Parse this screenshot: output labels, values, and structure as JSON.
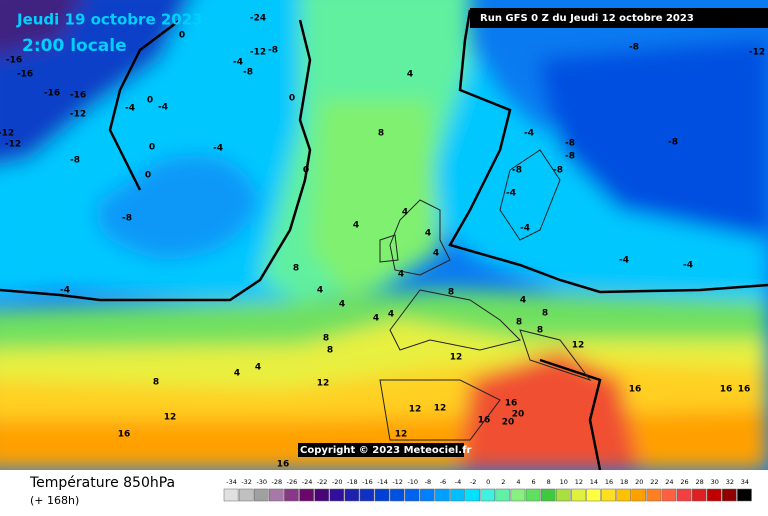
{
  "header": {
    "date": "Jeudi 19 octobre 2023",
    "time": "2:00 locale",
    "run": "Run GFS 0 Z du Jeudi 12 octobre 2023"
  },
  "map": {
    "copyright": "Copyright © 2023 Meteociel.fr",
    "labels": [
      "-24",
      "0",
      "-16",
      "-16",
      "-16",
      "-16",
      "-12",
      "-12",
      "-12",
      "-8",
      "-8",
      "-4",
      "-4",
      "0",
      "-4",
      "0",
      "0",
      "-4",
      "0",
      "-4",
      "-8",
      "-12",
      "-8",
      "0",
      "4",
      "8",
      "4",
      "4",
      "4",
      "4",
      "4",
      "8",
      "4",
      "4",
      "4",
      "4",
      "8",
      "8",
      "8",
      "4",
      "4",
      "8",
      "12",
      "16",
      "12",
      "12",
      "12",
      "12",
      "16",
      "16",
      "20",
      "20",
      "12",
      "16",
      "16",
      "16",
      "16",
      "12",
      "8",
      "8",
      "8",
      "-4",
      "-8",
      "-8",
      "-8",
      "-8",
      "-8",
      "-12",
      "-8",
      "-4",
      "-4",
      "-4",
      "-4",
      "4"
    ]
  },
  "footer": {
    "title": "Température 850hPa",
    "subtitle": "(+ 168h)"
  },
  "legend": {
    "values": [
      -34,
      -32,
      -30,
      -28,
      -26,
      -24,
      -22,
      -20,
      -18,
      -16,
      -14,
      -12,
      -10,
      -8,
      -6,
      -4,
      -2,
      0,
      2,
      4,
      6,
      8,
      10,
      12,
      14,
      16,
      18,
      20,
      22,
      24,
      26,
      28,
      30,
      32,
      34
    ],
    "colors": [
      "#e0e0e0",
      "#c0c0c0",
      "#a0a0a0",
      "#a878a8",
      "#883888",
      "#680868",
      "#480478",
      "#30109a",
      "#2020b0",
      "#1030c4",
      "#0040d4",
      "#0050e4",
      "#0062f0",
      "#0080ff",
      "#00a0ff",
      "#00c0ff",
      "#00e0ff",
      "#40f0e0",
      "#60f0a8",
      "#88f080",
      "#60e060",
      "#40c840",
      "#a8e040",
      "#e0f040",
      "#ffff40",
      "#ffe020",
      "#ffc000",
      "#ffa000",
      "#ff8020",
      "#ff6040",
      "#f04040",
      "#e02020",
      "#c00000",
      "#900000",
      "#000000"
    ]
  }
}
